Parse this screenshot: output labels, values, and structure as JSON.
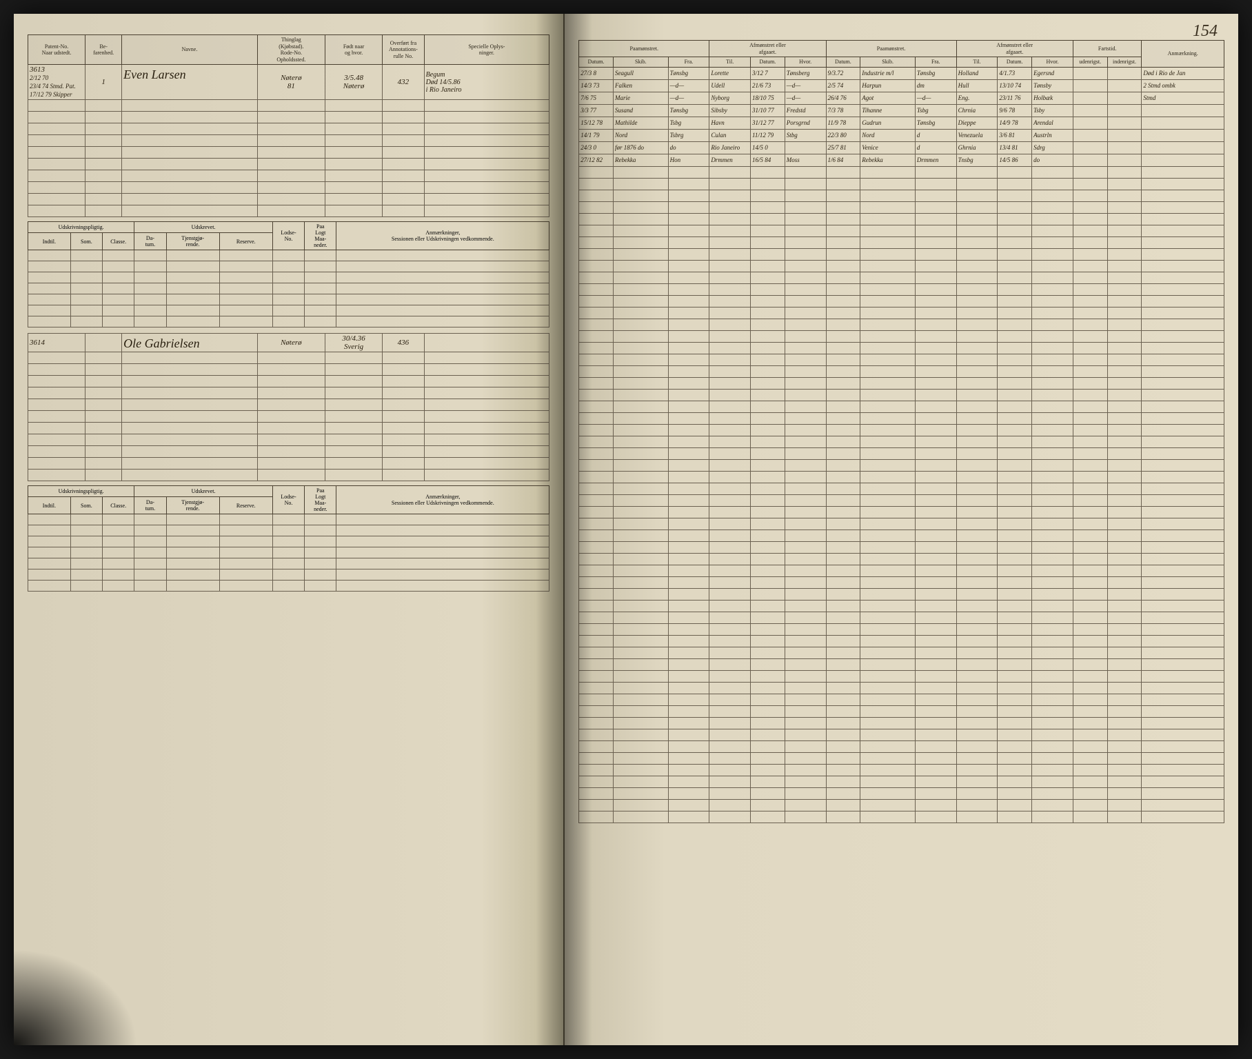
{
  "page_number": "154",
  "left_page": {
    "main_headers": {
      "patent": "Patent-No.\nNaar udstedt.",
      "befarenhed": "Be-\nfarenhed.",
      "navne": "Navne.",
      "thinglag": "Thinglag\n(Kjøbstad).\nRode-No.\nOpholdssted.",
      "fodt": "Født naar\nog hvor.",
      "overfort": "Overført fra\nAnnotations-\nrulle No.",
      "specielle": "Specielle Oplys-\nninger."
    },
    "records": [
      {
        "patent_no": "3613",
        "patent_dates": [
          "2/12 70",
          "23/4 74 Stmd. Pat.",
          "17/12 79 Skipper"
        ],
        "befarenhed": "1",
        "navn": "Even Larsen",
        "thinglag": "Nøterø\n81",
        "fodt": "3/5.48\nNøterø",
        "overfort": "432",
        "specielle": "Begum\nDød 14/5.86\ni Rio Janeiro"
      },
      {
        "patent_no": "3614",
        "patent_dates": [],
        "befarenhed": "",
        "navn": "Ole Gabrielsen",
        "thinglag": "Nøterø",
        "fodt": "30/4.36\nSverig",
        "overfort": "436",
        "specielle": ""
      }
    ],
    "sub_headers": {
      "udskrivning_group": "Udskrivningspligtig.",
      "udskrevet_group": "Udskrevet.",
      "indtil": "Indtil.",
      "som": "Som.",
      "classe": "Classe.",
      "datum": "Da-\ntum.",
      "tjenst": "Tjenstgjø-\nrende.",
      "reserve": "Reserve.",
      "lodse": "Lodse-\nNo.",
      "logt": "Paa\nLogt\nMaa-\nneder.",
      "anmaerk": "Anmærkninger,\nSessionen eller Udskrivningen vedkommende."
    }
  },
  "right_page": {
    "group_headers": {
      "paamonstret1": "Paamønstret.",
      "afmonstret1": "Afmønstret eller\nafgaaet.",
      "paamonstret2": "Paamønstret.",
      "afmonstret2": "Afmønstret eller\nafgaaet.",
      "fartstid": "Fartstid."
    },
    "col_headers": {
      "datum": "Datum.",
      "skib": "Skib.",
      "fra": "Fra.",
      "til": "Til.",
      "hvor": "Hvor.",
      "udenrigst": "udenrigst.",
      "indenrigst": "indenrigst.",
      "anmaerkning": "Anmærkning."
    },
    "voyage_rows": [
      {
        "d1": "27/3 8",
        "s1": "Seagull",
        "f1": "Tønsbg",
        "t1": "Lorette",
        "d2": "3/12 7",
        "h2": "Tønsberg",
        "d3": "9/3.72",
        "s3": "Industrie m/l",
        "f3": "Tønsbg",
        "t2": "Holland",
        "d4": "4/1.73",
        "h4": "Egersnd",
        "u": "",
        "i": "",
        "a": "Død i Rio de Jan"
      },
      {
        "d1": "14/3 73",
        "s1": "Falken",
        "f1": "—d—",
        "t1": "Udell",
        "d2": "21/6 73",
        "h2": "—d—",
        "d3": "2/5 74",
        "s3": "Harpun",
        "f3": "dm",
        "t2": "Hull",
        "d4": "13/10 74",
        "h4": "Tønsby",
        "u": "",
        "i": "",
        "a": "2 Stmd ombk"
      },
      {
        "d1": "7/6 75",
        "s1": "Marie",
        "f1": "—d—",
        "t1": "Nyborg",
        "d2": "18/10 75",
        "h2": "—d—",
        "d3": "26/4 76",
        "s3": "Agot",
        "f3": "—d—",
        "t2": "Eng.",
        "d4": "23/11 76",
        "h4": "Holbæk",
        "u": "",
        "i": "",
        "a": "Stmd"
      },
      {
        "d1": "3/3 77",
        "s1": "Susand",
        "f1": "Tønsbg",
        "t1": "Sibsby",
        "d2": "31/10 77",
        "h2": "Fredstd",
        "d3": "7/3 78",
        "s3": "Tihanne",
        "f3": "Tsbg",
        "t2": "Chrnia",
        "d4": "9/6 78",
        "h4": "Tsby",
        "u": "",
        "i": "",
        "a": ""
      },
      {
        "d1": "15/12 78",
        "s1": "Mathilde",
        "f1": "Tsbg",
        "t1": "Havn",
        "d2": "31/12 77",
        "h2": "Porsgrnd",
        "d3": "11/9 78",
        "s3": "Gudrun",
        "f3": "Tønsbg",
        "t2": "Dieppe",
        "d4": "14/9 78",
        "h4": "Arendal",
        "u": "",
        "i": "",
        "a": ""
      },
      {
        "d1": "14/1 79",
        "s1": "Nord",
        "f1": "Tsbrg",
        "t1": "Culan",
        "d2": "11/12 79",
        "h2": "Stbg",
        "d3": "22/3 80",
        "s3": "Nord",
        "f3": "d",
        "t2": "Venezuela",
        "d4": "3/6 81",
        "h4": "Austrln",
        "u": "",
        "i": "",
        "a": ""
      },
      {
        "d1": "24/3 0",
        "s1": "før 1876 do",
        "f1": "do",
        "t1": "Rio Janeiro",
        "d2": "14/5 0",
        "h2": "",
        "d3": "25/7 81",
        "s3": "Venice",
        "f3": "d",
        "t2": "Ghrnia",
        "d4": "13/4 81",
        "h4": "Sdrg",
        "u": "",
        "i": "",
        "a": ""
      },
      {
        "d1": "27/12 82",
        "s1": "Rebekka",
        "f1": "Hon",
        "t1": "Drmmen",
        "d2": "16/5 84",
        "h2": "Moss",
        "d3": "1/6 84",
        "s3": "Rebekka",
        "f3": "Drmmen",
        "t2": "Tnsbg",
        "d4": "14/5 86",
        "h4": "do",
        "u": "",
        "i": "",
        "a": ""
      }
    ]
  },
  "styling": {
    "paper_bg": "#e0d8c2",
    "ink_color": "#2a2010",
    "border_color": "#4a4030",
    "header_font_size": 8,
    "cell_font_size": 11
  }
}
